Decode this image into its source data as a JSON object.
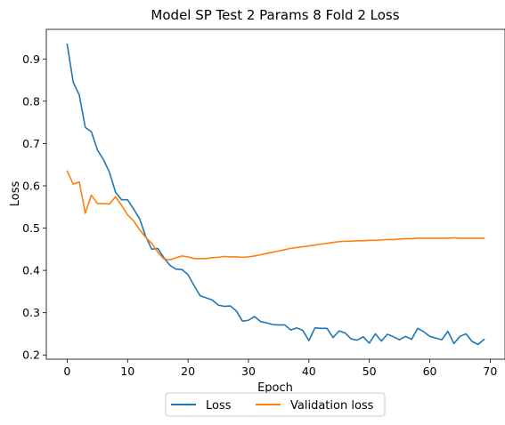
{
  "chart_data": {
    "type": "line",
    "title": "Model SP Test 2 Params 8 Fold 2 Loss",
    "xlabel": "Epoch",
    "ylabel": "Loss",
    "xlim": [
      -3.45,
      72.45
    ],
    "ylim": [
      0.19,
      0.97
    ],
    "xticks": [
      0,
      10,
      20,
      30,
      40,
      50,
      60,
      70
    ],
    "yticks": [
      0.2,
      0.3,
      0.4,
      0.5,
      0.6,
      0.7,
      0.8,
      0.9
    ],
    "ytick_labels": [
      "0.2",
      "0.3",
      "0.4",
      "0.5",
      "0.6",
      "0.7",
      "0.8",
      "0.9"
    ],
    "legend_position": "lower-center-outside",
    "grid": false,
    "x": [
      0,
      1,
      2,
      3,
      4,
      5,
      6,
      7,
      8,
      9,
      10,
      11,
      12,
      13,
      14,
      15,
      16,
      17,
      18,
      19,
      20,
      21,
      22,
      23,
      24,
      25,
      26,
      27,
      28,
      29,
      30,
      31,
      32,
      33,
      34,
      35,
      36,
      37,
      38,
      39,
      40,
      41,
      42,
      43,
      44,
      45,
      46,
      47,
      48,
      49,
      50,
      51,
      52,
      53,
      54,
      55,
      56,
      57,
      58,
      59,
      60,
      61,
      62,
      63,
      64,
      65,
      66,
      67,
      68,
      69
    ],
    "series": [
      {
        "name": "Loss",
        "color": "#1f77b4",
        "values": [
          0.935,
          0.845,
          0.815,
          0.738,
          0.728,
          0.685,
          0.662,
          0.632,
          0.585,
          0.567,
          0.567,
          0.545,
          0.522,
          0.48,
          0.45,
          0.452,
          0.43,
          0.412,
          0.403,
          0.402,
          0.39,
          0.364,
          0.34,
          0.335,
          0.33,
          0.318,
          0.315,
          0.316,
          0.304,
          0.28,
          0.282,
          0.291,
          0.279,
          0.276,
          0.272,
          0.271,
          0.271,
          0.259,
          0.264,
          0.258,
          0.234,
          0.264,
          0.263,
          0.263,
          0.241,
          0.257,
          0.252,
          0.238,
          0.235,
          0.243,
          0.228,
          0.25,
          0.233,
          0.249,
          0.243,
          0.236,
          0.244,
          0.237,
          0.263,
          0.255,
          0.244,
          0.24,
          0.236,
          0.256,
          0.227,
          0.244,
          0.25,
          0.232,
          0.225,
          0.237
        ]
      },
      {
        "name": "Validation loss",
        "color": "#ff7f0e",
        "values": [
          0.635,
          0.604,
          0.609,
          0.535,
          0.578,
          0.558,
          0.558,
          0.557,
          0.574,
          0.554,
          0.531,
          0.517,
          0.496,
          0.478,
          0.464,
          0.443,
          0.427,
          0.425,
          0.43,
          0.434,
          0.432,
          0.428,
          0.428,
          0.428,
          0.43,
          0.431,
          0.433,
          0.432,
          0.432,
          0.431,
          0.432,
          0.434,
          0.437,
          0.44,
          0.443,
          0.446,
          0.449,
          0.452,
          0.454,
          0.456,
          0.458,
          0.46,
          0.462,
          0.464,
          0.466,
          0.468,
          0.469,
          0.469,
          0.47,
          0.47,
          0.471,
          0.471,
          0.472,
          0.473,
          0.473,
          0.474,
          0.475,
          0.475,
          0.476,
          0.476,
          0.476,
          0.476,
          0.476,
          0.476,
          0.477,
          0.476,
          0.476,
          0.476,
          0.476,
          0.476
        ]
      }
    ]
  }
}
